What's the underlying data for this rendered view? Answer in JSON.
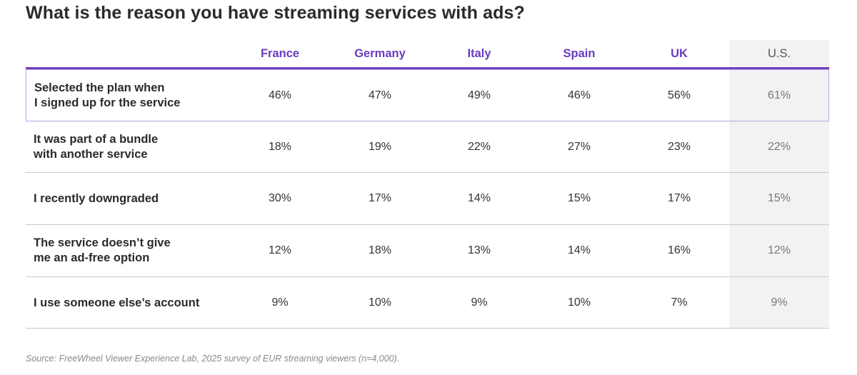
{
  "chart_data": {
    "type": "table",
    "title": "What is the reason you have streaming services with ads?",
    "columns": [
      "France",
      "Germany",
      "Italy",
      "Spain",
      "UK",
      "U.S."
    ],
    "rows": [
      {
        "label_lines": [
          "Selected the plan when",
          "I signed up for the service"
        ],
        "values": [
          "46%",
          "47%",
          "49%",
          "46%",
          "56%",
          "61%"
        ]
      },
      {
        "label_lines": [
          "It was part of a bundle",
          "with another service"
        ],
        "values": [
          "18%",
          "19%",
          "22%",
          "27%",
          "23%",
          "22%"
        ]
      },
      {
        "label_lines": [
          "I recently downgraded"
        ],
        "values": [
          "30%",
          "17%",
          "14%",
          "15%",
          "17%",
          "15%"
        ]
      },
      {
        "label_lines": [
          "The service doesn’t give",
          "me an ad-free option"
        ],
        "values": [
          "12%",
          "18%",
          "13%",
          "14%",
          "16%",
          "12%"
        ]
      },
      {
        "label_lines": [
          "I use someone else’s account"
        ],
        "values": [
          "9%",
          "10%",
          "9%",
          "10%",
          "7%",
          "9%"
        ]
      }
    ],
    "highlighted_row": 0,
    "highlighted_column": "U.S.",
    "source": "Source: FreeWheel Viewer Experience Lab, 2025 survey of EUR streaming viewers (n=4,000)."
  },
  "colors": {
    "accent": "#6a3dc0",
    "highlight_border": "#b9a3e3",
    "us_band": "#f2f2f2"
  }
}
